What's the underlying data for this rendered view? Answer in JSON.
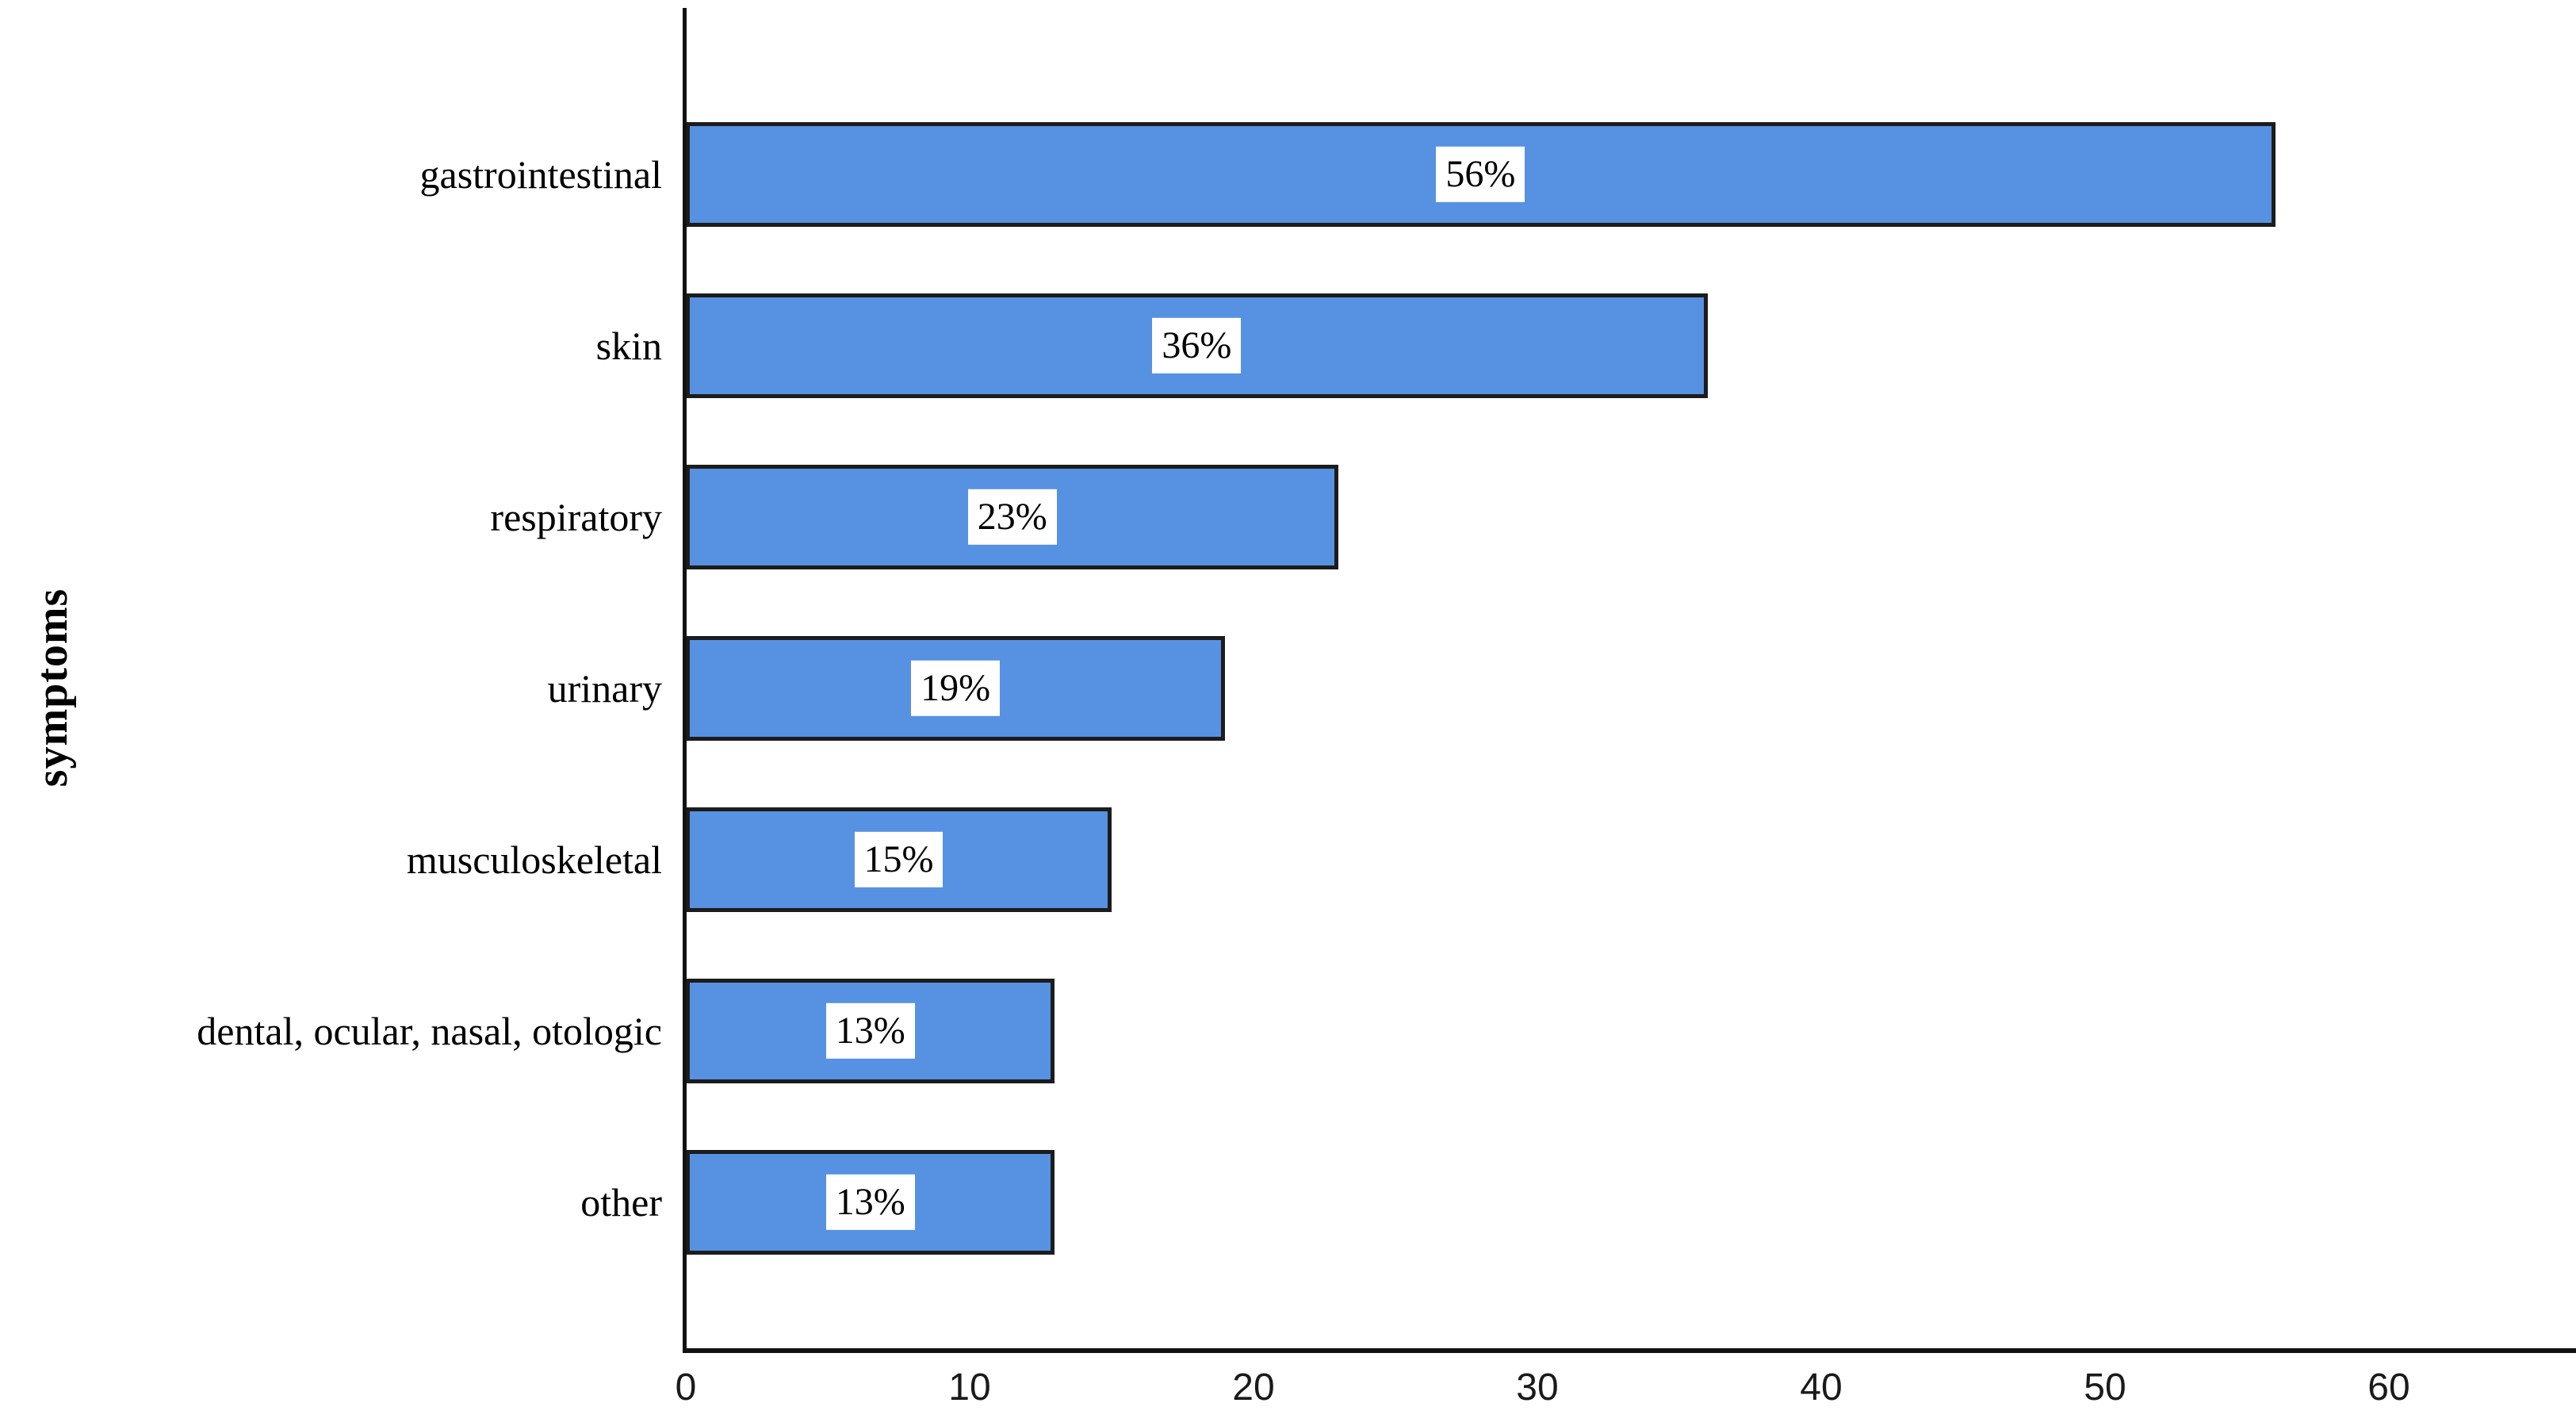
{
  "chart_data": {
    "type": "bar",
    "orientation": "horizontal",
    "title": "",
    "xlabel": "",
    "ylabel": "symptoms",
    "categories": [
      "gastrointestinal",
      "skin",
      "respiratory",
      "urinary",
      "musculoskeletal",
      "dental, ocular, nasal, otologic",
      "other"
    ],
    "values": [
      56,
      36,
      23,
      19,
      15,
      13,
      13
    ],
    "value_labels": [
      "56%",
      "36%",
      "23%",
      "19%",
      "15%",
      "13%",
      "13%"
    ],
    "x_ticks": [
      "0",
      "10",
      "20",
      "30",
      "40",
      "50",
      "60"
    ],
    "xlim": [
      0,
      66.6
    ],
    "grid": false,
    "legend": "none",
    "bar_fill_color": "#5791E2",
    "bar_border_color": "#1c1c1c",
    "axis_color": "#111111",
    "value_label_background": "#ffffff",
    "text_color": "#000000"
  }
}
